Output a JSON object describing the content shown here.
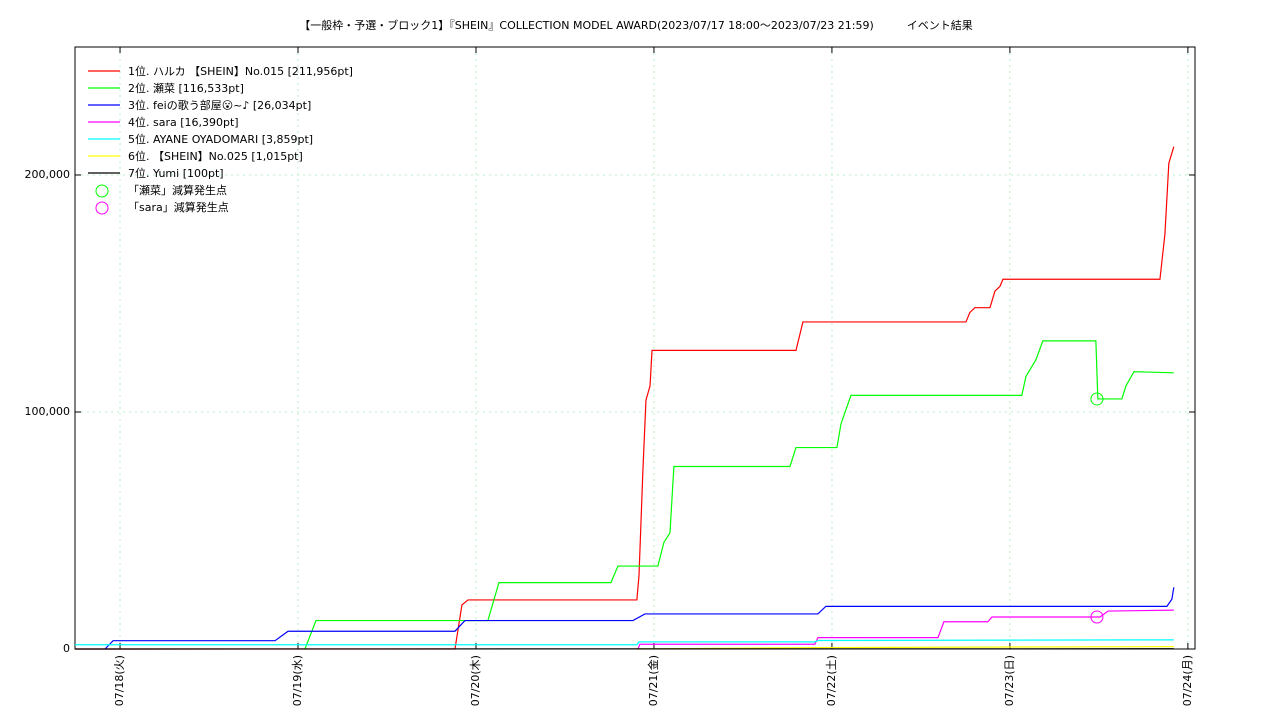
{
  "chart_data": {
    "type": "line",
    "title": "【一般枠・予選・ブロック1】『SHEIN』COLLECTION MODEL AWARD(2023/07/17 18:00～2023/07/23 21:59)　　　イベント結果",
    "xlim": [
      17.747,
      24.04
    ],
    "xticks": [
      {
        "value": 18,
        "label": "07/18(火)"
      },
      {
        "value": 19,
        "label": "07/19(水)"
      },
      {
        "value": 20,
        "label": "07/20(木)"
      },
      {
        "value": 21,
        "label": "07/21(金)"
      },
      {
        "value": 22,
        "label": "07/22(土)"
      },
      {
        "value": 23,
        "label": "07/23(日)"
      },
      {
        "value": 24,
        "label": "07/24(月)"
      }
    ],
    "ylim": [
      0,
      254000
    ],
    "yticks": [
      0,
      {
        "value": 100000,
        "label": "100,000"
      },
      {
        "value": 200000,
        "label": "200,000"
      }
    ],
    "grid": true,
    "legend": "top-left",
    "series": [
      {
        "name": "1位. ハルカ 【SHEIN】No.015 [211,956pt]",
        "color": "#ff0000",
        "x": [
          17.747,
          19.882,
          19.921,
          19.955,
          20.904,
          20.916,
          20.938,
          20.955,
          20.978,
          20.989,
          21.798,
          21.837,
          22.753,
          22.775,
          22.803,
          22.888,
          22.916,
          22.944,
          22.961,
          23.843,
          23.871,
          23.893,
          23.921
        ],
        "values": [
          0,
          0,
          18600,
          20700,
          20700,
          31000,
          75500,
          105000,
          111000,
          126000,
          126000,
          138000,
          138000,
          142000,
          144000,
          144000,
          151000,
          153000,
          156000,
          156000,
          175000,
          205000,
          211956
        ]
      },
      {
        "name": "2位. 瀬菜 [116,533pt]",
        "color": "#00ff00",
        "x": [
          19.039,
          19.101,
          20.067,
          20.129,
          20.758,
          20.798,
          21.022,
          21.056,
          21.09,
          21.112,
          21.764,
          21.798,
          22.028,
          22.051,
          22.107,
          23.067,
          23.09,
          23.146,
          23.185,
          23.483,
          23.494,
          23.629,
          23.652,
          23.697,
          23.921
        ],
        "values": [
          0,
          12000,
          12000,
          28000,
          28000,
          35000,
          35000,
          45000,
          49000,
          77000,
          77000,
          85000,
          85000,
          95000,
          107000,
          107000,
          115000,
          122000,
          130000,
          130000,
          105500,
          105500,
          111000,
          117000,
          116533
        ]
      },
      {
        "name": "3位. feiの歌う部屋😮~♪ [26,034pt]",
        "color": "#0000ff",
        "x": [
          17.916,
          17.961,
          18.871,
          18.944,
          19.882,
          19.938,
          20.882,
          20.949,
          21.921,
          21.966,
          23.882,
          23.91,
          23.921
        ],
        "values": [
          0,
          3500,
          3500,
          7500,
          7500,
          12000,
          12000,
          14800,
          14800,
          18000,
          18000,
          21000,
          26034
        ]
      },
      {
        "name": "4位. sara [16,390pt]",
        "color": "#ff00ff",
        "x": [
          20.91,
          20.921,
          21.904,
          21.921,
          22.596,
          22.629,
          22.876,
          22.899,
          23.506,
          23.551,
          23.921
        ],
        "values": [
          0,
          2000,
          2000,
          4800,
          4800,
          11500,
          11500,
          13500,
          13500,
          16000,
          16390
        ]
      },
      {
        "name": "5位. AYANE OYADOMARI [3,859pt]",
        "color": "#00ffff",
        "x": [
          17.747,
          20.904,
          20.916,
          21.904,
          21.921,
          23.921
        ],
        "values": [
          1800,
          1800,
          3000,
          3000,
          3600,
          3859
        ]
      },
      {
        "name": "6位. 【SHEIN】No.025 [1,015pt]",
        "color": "#ffff00",
        "x": [
          20.904,
          21.921,
          23.921
        ],
        "values": [
          0,
          600,
          1015
        ]
      },
      {
        "name": "7位. Yumi [100pt]",
        "color": "#000000",
        "x": [
          17.747,
          23.921
        ],
        "values": [
          0,
          100
        ]
      },
      {
        "name": "「瀬菜」減算発生点",
        "color": "#00ff00",
        "marker": "circle",
        "x": [
          23.489
        ],
        "values": [
          105500
        ]
      },
      {
        "name": "「sara」減算発生点",
        "color": "#ff00ff",
        "marker": "circle",
        "x": [
          23.489
        ],
        "values": [
          13500
        ]
      }
    ]
  }
}
